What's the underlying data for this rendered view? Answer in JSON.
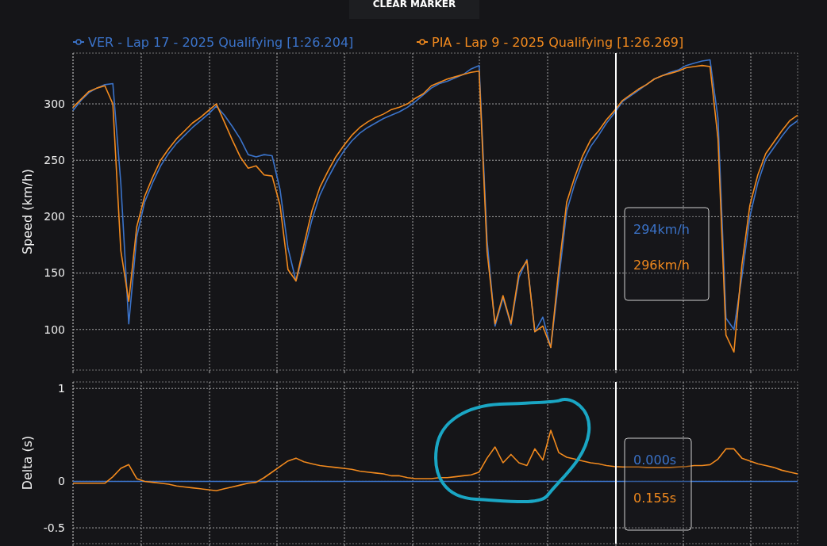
{
  "chart_data": [
    {
      "type": "line",
      "ylabel": "Speed (km/h)",
      "legend": "top",
      "grid": true,
      "tick_labels": "y",
      "categories": [
        null,
        null,
        null,
        null,
        null,
        null,
        null,
        null,
        null,
        null,
        null,
        null,
        null,
        null,
        null,
        null,
        null,
        null,
        null,
        null,
        null,
        null,
        null,
        null,
        null,
        null,
        null,
        null,
        null,
        null,
        null,
        null,
        null,
        null,
        null,
        null,
        null,
        null,
        null,
        null,
        null,
        null,
        null,
        null,
        null,
        null,
        null,
        null,
        null,
        null,
        null,
        null,
        null,
        null,
        null,
        null,
        null,
        null,
        null,
        null,
        null,
        null,
        null,
        null,
        null,
        null,
        null,
        null,
        null,
        null,
        null,
        null,
        null,
        null,
        null,
        null,
        null,
        null,
        null,
        null,
        null,
        null,
        null,
        null,
        null,
        null,
        null,
        null,
        null,
        null,
        null,
        null
      ],
      "ylim": [
        64,
        345
      ],
      "yticks": [
        100,
        150,
        200,
        250,
        300
      ],
      "series": [
        {
          "name": "VER - Lap 17 - 2025 Qualifying [1:26.204]",
          "color": "#3b73c9",
          "values": [
            294,
            303,
            310,
            314,
            317,
            318,
            230,
            105,
            182,
            213,
            230,
            245,
            256,
            265,
            272,
            279,
            285,
            291,
            298,
            290,
            280,
            269,
            255,
            253,
            255,
            254,
            224,
            172,
            143,
            169,
            197,
            219,
            234,
            247,
            258,
            267,
            274,
            279,
            283,
            287,
            290,
            293,
            297,
            302,
            308,
            314,
            318,
            320,
            323,
            326,
            331,
            334,
            179,
            103,
            128,
            104,
            146,
            162,
            98,
            111,
            84,
            144,
            205,
            229,
            248,
            262,
            272,
            283,
            292,
            302,
            307,
            312,
            317,
            322,
            325,
            328,
            330,
            334,
            336,
            338,
            339,
            287,
            110,
            100,
            147,
            200,
            230,
            251,
            261,
            271,
            280,
            285
          ]
        },
        {
          "name": "PIA - Lap 9 - 2025 Qualifying [1:26.269]",
          "color": "#f28a1e",
          "values": [
            297,
            304,
            311,
            314,
            316,
            300,
            170,
            125,
            191,
            218,
            235,
            250,
            260,
            269,
            276,
            283,
            288,
            294,
            300,
            284,
            268,
            253,
            243,
            245,
            237,
            236,
            210,
            153,
            143,
            175,
            205,
            226,
            240,
            253,
            263,
            272,
            279,
            284,
            288,
            291,
            295,
            297,
            300,
            305,
            309,
            316,
            319,
            322,
            324,
            326,
            328,
            329,
            169,
            105,
            130,
            105,
            150,
            161,
            98,
            103,
            84,
            153,
            213,
            235,
            254,
            268,
            276,
            286,
            294,
            303,
            308,
            313,
            317,
            322,
            325,
            327,
            329,
            332,
            333,
            334,
            333,
            269,
            95,
            80,
            157,
            210,
            237,
            256,
            266,
            276,
            285,
            290
          ]
        }
      ],
      "annotations": [
        "CLEAR MARKER",
        "294km/h",
        "296km/h"
      ]
    },
    {
      "type": "line",
      "ylabel": "Delta (s)",
      "grid": true,
      "tick_labels": "y",
      "categories": [
        null,
        null,
        null,
        null,
        null,
        null,
        null,
        null,
        null,
        null,
        null,
        null,
        null,
        null,
        null,
        null,
        null,
        null,
        null,
        null,
        null,
        null,
        null,
        null,
        null,
        null,
        null,
        null,
        null,
        null,
        null,
        null,
        null,
        null,
        null,
        null,
        null,
        null,
        null,
        null,
        null,
        null,
        null,
        null,
        null,
        null,
        null,
        null,
        null,
        null,
        null,
        null,
        null,
        null,
        null,
        null,
        null,
        null,
        null,
        null,
        null,
        null,
        null,
        null,
        null,
        null,
        null,
        null,
        null,
        null,
        null,
        null,
        null,
        null,
        null,
        null,
        null,
        null,
        null,
        null,
        null,
        null,
        null,
        null,
        null,
        null,
        null,
        null,
        null,
        null,
        null,
        null
      ],
      "ylim": [
        -0.67,
        1.07
      ],
      "yticks": [
        -0.5,
        0,
        1
      ],
      "series": [
        {
          "color": "#3b73c9",
          "values": [
            0,
            0,
            0,
            0,
            0,
            0,
            0,
            0,
            0,
            0,
            0,
            0,
            0,
            0,
            0,
            0,
            0,
            0,
            0,
            0,
            0,
            0,
            0,
            0,
            0,
            0,
            0,
            0,
            0,
            0,
            0,
            0,
            0,
            0,
            0,
            0,
            0,
            0,
            0,
            0,
            0,
            0,
            0,
            0,
            0,
            0,
            0,
            0,
            0,
            0,
            0,
            0,
            0,
            0,
            0,
            0,
            0,
            0,
            0,
            0,
            0,
            0,
            0,
            0,
            0,
            0,
            0,
            0,
            0,
            0,
            0,
            0,
            0,
            0,
            0,
            0,
            0,
            0,
            0,
            0,
            0,
            0,
            0,
            0,
            0,
            0,
            0,
            0,
            0,
            0,
            0,
            0
          ]
        },
        {
          "color": "#f28a1e",
          "values": [
            -0.02,
            -0.02,
            -0.02,
            -0.02,
            -0.02,
            0.05,
            0.14,
            0.18,
            0.03,
            0,
            -0.01,
            -0.02,
            -0.03,
            -0.05,
            -0.06,
            -0.07,
            -0.08,
            -0.09,
            -0.1,
            -0.08,
            -0.06,
            -0.04,
            -0.02,
            -0.01,
            0.04,
            0.1,
            0.16,
            0.22,
            0.25,
            0.21,
            0.19,
            0.17,
            0.16,
            0.15,
            0.14,
            0.13,
            0.11,
            0.1,
            0.09,
            0.08,
            0.06,
            0.06,
            0.04,
            0.03,
            0.03,
            0.03,
            0.04,
            0.04,
            0.05,
            0.06,
            0.07,
            0.1,
            0.25,
            0.37,
            0.2,
            0.29,
            0.2,
            0.17,
            0.35,
            0.23,
            0.55,
            0.31,
            0.26,
            0.24,
            0.22,
            0.2,
            0.19,
            0.17,
            0.16,
            0.155,
            0.155,
            0.155,
            0.15,
            0.15,
            0.15,
            0.15,
            0.155,
            0.16,
            0.17,
            0.17,
            0.18,
            0.24,
            0.35,
            0.35,
            0.25,
            0.22,
            0.19,
            0.17,
            0.15,
            0.12,
            0.1,
            0.08
          ]
        }
      ],
      "annotations": [
        "0.000s",
        "0.155s"
      ]
    }
  ]
}
